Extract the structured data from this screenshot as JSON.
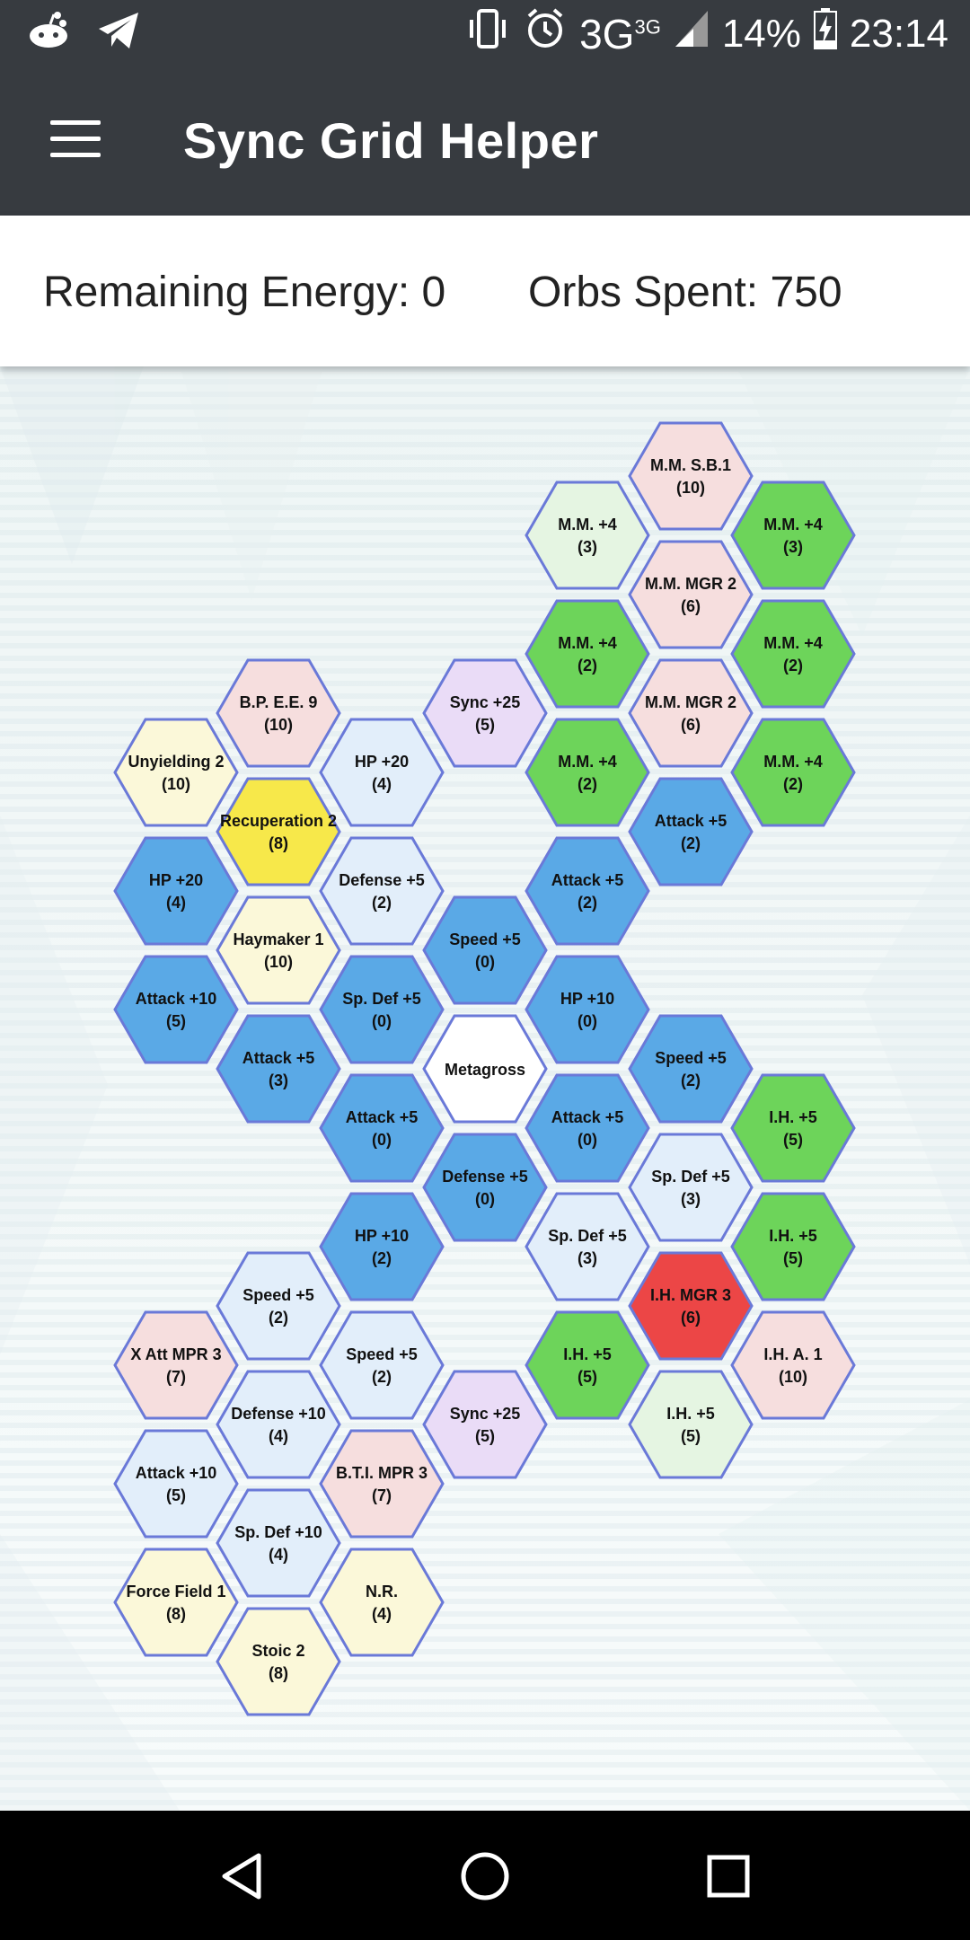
{
  "status_bar": {
    "network": "3G",
    "network_super": "3G",
    "battery": "14%",
    "time": "23:14",
    "icons": [
      "reddit-icon",
      "telegram-icon",
      "vibrate-icon",
      "alarm-icon",
      "signal-icon",
      "battery-charging-icon"
    ]
  },
  "app_bar": {
    "title": "Sync Grid Helper",
    "menu_icon": "hamburger-menu-icon"
  },
  "info": {
    "energy_text": "Remaining Energy: 0",
    "orbs_text": "Orbs Spent: 750"
  },
  "colors": {
    "blue": "#5aa9e6",
    "green": "#6dd45a",
    "yellow": "#f7e84a",
    "red": "#ec4646",
    "pale_pink": "#f6dede",
    "pale_green": "#e5f5e2",
    "pale_blue": "#e2eefa",
    "pale_purple": "#eadcf7",
    "pale_yellow": "#fbf8d9",
    "white": "#ffffff",
    "border": "#6a79d8"
  },
  "grid": {
    "center_label": "Metagross",
    "tiles": [
      {
        "label": "M.M. S.B.1",
        "cost": "(10)",
        "fill": "pale_pink"
      },
      {
        "label": "M.M. +4",
        "cost": "(3)",
        "fill": "pale_green"
      },
      {
        "label": "M.M. +4",
        "cost": "(3)",
        "fill": "green"
      },
      {
        "label": "M.M. MGR 2",
        "cost": "(6)",
        "fill": "pale_pink"
      },
      {
        "label": "M.M. +4",
        "cost": "(2)",
        "fill": "green"
      },
      {
        "label": "M.M. +4",
        "cost": "(2)",
        "fill": "green"
      },
      {
        "label": "B.P. E.E. 9",
        "cost": "(10)",
        "fill": "pale_pink"
      },
      {
        "label": "Sync +25",
        "cost": "(5)",
        "fill": "pale_purple"
      },
      {
        "label": "M.M. MGR 2",
        "cost": "(6)",
        "fill": "pale_pink"
      },
      {
        "label": "Unyielding 2",
        "cost": "(10)",
        "fill": "pale_yellow"
      },
      {
        "label": "HP +20",
        "cost": "(4)",
        "fill": "pale_blue"
      },
      {
        "label": "M.M. +4",
        "cost": "(2)",
        "fill": "green"
      },
      {
        "label": "M.M. +4",
        "cost": "(2)",
        "fill": "green"
      },
      {
        "label": "Recuperation 2",
        "cost": "(8)",
        "fill": "yellow"
      },
      {
        "label": "Attack +5",
        "cost": "(2)",
        "fill": "blue"
      },
      {
        "label": "HP +20",
        "cost": "(4)",
        "fill": "blue"
      },
      {
        "label": "Defense +5",
        "cost": "(2)",
        "fill": "pale_blue"
      },
      {
        "label": "Attack +5",
        "cost": "(2)",
        "fill": "blue"
      },
      {
        "label": "Haymaker 1",
        "cost": "(10)",
        "fill": "pale_yellow"
      },
      {
        "label": "Speed +5",
        "cost": "(0)",
        "fill": "blue"
      },
      {
        "label": "Attack +10",
        "cost": "(5)",
        "fill": "blue"
      },
      {
        "label": "Sp. Def +5",
        "cost": "(0)",
        "fill": "blue"
      },
      {
        "label": "HP +10",
        "cost": "(0)",
        "fill": "blue"
      },
      {
        "label": "Attack +5",
        "cost": "(3)",
        "fill": "blue"
      },
      {
        "label": "Metagross",
        "cost": "",
        "fill": "white"
      },
      {
        "label": "Speed +5",
        "cost": "(2)",
        "fill": "blue"
      },
      {
        "label": "Attack +5",
        "cost": "(0)",
        "fill": "blue"
      },
      {
        "label": "Attack +5",
        "cost": "(0)",
        "fill": "blue"
      },
      {
        "label": "I.H. +5",
        "cost": "(5)",
        "fill": "green"
      },
      {
        "label": "Defense +5",
        "cost": "(0)",
        "fill": "blue"
      },
      {
        "label": "Sp. Def +5",
        "cost": "(3)",
        "fill": "pale_blue"
      },
      {
        "label": "HP +10",
        "cost": "(2)",
        "fill": "blue"
      },
      {
        "label": "Sp. Def +5",
        "cost": "(3)",
        "fill": "pale_blue"
      },
      {
        "label": "I.H. +5",
        "cost": "(5)",
        "fill": "green"
      },
      {
        "label": "Speed +5",
        "cost": "(2)",
        "fill": "pale_blue"
      },
      {
        "label": "I.H. MGR 3",
        "cost": "(6)",
        "fill": "red"
      },
      {
        "label": "X Att MPR 3",
        "cost": "(7)",
        "fill": "pale_pink"
      },
      {
        "label": "Speed +5",
        "cost": "(2)",
        "fill": "pale_blue"
      },
      {
        "label": "I.H. +5",
        "cost": "(5)",
        "fill": "green"
      },
      {
        "label": "I.H. A. 1",
        "cost": "(10)",
        "fill": "pale_pink"
      },
      {
        "label": "Defense +10",
        "cost": "(4)",
        "fill": "pale_blue"
      },
      {
        "label": "Sync +25",
        "cost": "(5)",
        "fill": "pale_purple"
      },
      {
        "label": "I.H. +5",
        "cost": "(5)",
        "fill": "pale_green"
      },
      {
        "label": "Attack +10",
        "cost": "(5)",
        "fill": "pale_blue"
      },
      {
        "label": "B.T.I. MPR 3",
        "cost": "(7)",
        "fill": "pale_pink"
      },
      {
        "label": "Sp. Def +10",
        "cost": "(4)",
        "fill": "pale_blue"
      },
      {
        "label": "Force Field 1",
        "cost": "(8)",
        "fill": "pale_yellow"
      },
      {
        "label": "N.R.",
        "cost": "(4)",
        "fill": "pale_yellow"
      },
      {
        "label": "Stoic 2",
        "cost": "(8)",
        "fill": "pale_yellow"
      }
    ]
  },
  "nav_bar": {
    "back": "back-triangle-icon",
    "home": "home-circle-icon",
    "recents": "recents-square-icon"
  }
}
